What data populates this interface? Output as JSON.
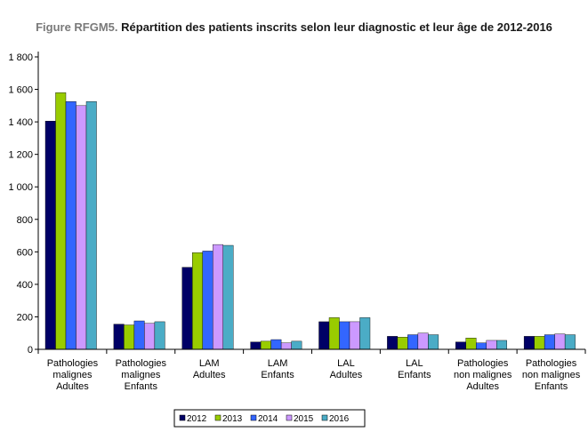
{
  "title": {
    "lead": "Figure RFGM5.",
    "main": " Répartition des patients inscrits selon leur diagnostic et leur âge de 2012-2016"
  },
  "chart_data": {
    "type": "bar",
    "title": "Figure RFGM5. Répartition des patients inscrits selon leur diagnostic et leur âge de 2012-2016",
    "xlabel": "",
    "ylabel": "",
    "ylim": [
      0,
      1800
    ],
    "yticks": [
      "0",
      "200",
      "400",
      "600",
      "800",
      "1 000",
      "1 200",
      "1 400",
      "1 600",
      "1 800"
    ],
    "grid": false,
    "legend_position": "bottom",
    "categories": [
      [
        "Pathologies",
        "malignes",
        "Adultes"
      ],
      [
        "Pathologies",
        "malignes",
        "Enfants"
      ],
      [
        "LAM",
        "Adultes"
      ],
      [
        "LAM",
        "Enfants"
      ],
      [
        "LAL",
        "Adultes"
      ],
      [
        "LAL",
        "Enfants"
      ],
      [
        "Pathologies",
        "non malignes",
        "Adultes"
      ],
      [
        "Pathologies",
        "non malignes",
        "Enfants"
      ]
    ],
    "series": [
      {
        "name": "2012",
        "color": "#000066",
        "values": [
          1405,
          155,
          505,
          45,
          170,
          80,
          45,
          80
        ]
      },
      {
        "name": "2013",
        "color": "#99cc00",
        "values": [
          1580,
          150,
          595,
          50,
          195,
          75,
          70,
          80
        ]
      },
      {
        "name": "2014",
        "color": "#3366ff",
        "values": [
          1525,
          175,
          605,
          60,
          170,
          90,
          40,
          90
        ]
      },
      {
        "name": "2015",
        "color": "#cc99ff",
        "values": [
          1500,
          160,
          645,
          40,
          170,
          100,
          55,
          95
        ]
      },
      {
        "name": "2016",
        "color": "#4bacc6",
        "values": [
          1525,
          170,
          640,
          50,
          195,
          90,
          55,
          90
        ]
      }
    ]
  }
}
